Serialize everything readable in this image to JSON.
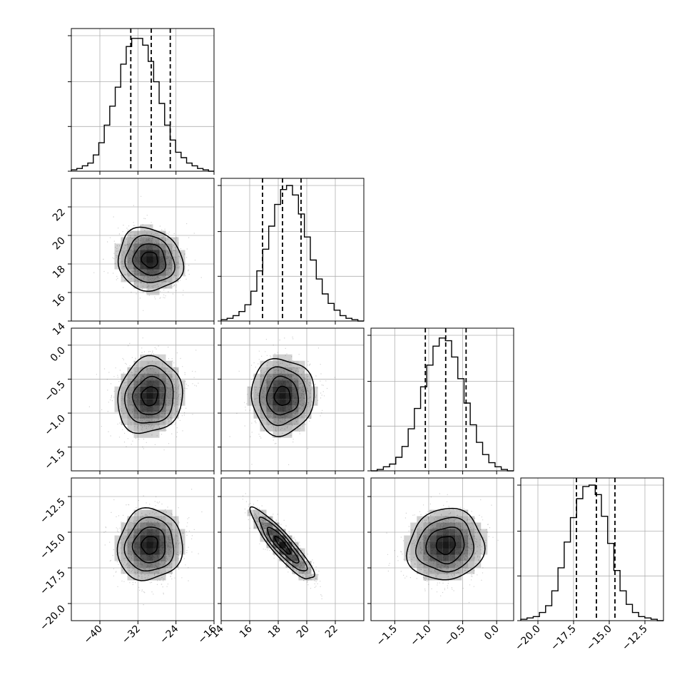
{
  "chart_data": {
    "type": "corner",
    "title": "",
    "colors": {
      "ink": "#000000",
      "grid": "#b0b0b0",
      "density": "#000000"
    },
    "grid": true,
    "variables": [
      {
        "index": 0,
        "range": [
          -46,
          -16
        ],
        "ticks": [
          -40,
          -32,
          -24,
          -16
        ],
        "tick_labels": [
          "−40",
          "−32",
          "−24",
          "−16"
        ],
        "quantiles": [
          -33.5,
          -29.2,
          -25.2
        ],
        "hist": [
          0.01,
          0.02,
          0.04,
          0.06,
          0.12,
          0.21,
          0.34,
          0.48,
          0.62,
          0.79,
          0.92,
          0.98,
          0.98,
          0.93,
          0.81,
          0.66,
          0.5,
          0.34,
          0.23,
          0.14,
          0.1,
          0.06,
          0.04,
          0.02,
          0.01,
          0.0
        ]
      },
      {
        "index": 1,
        "range": [
          14,
          24
        ],
        "ticks": [
          14,
          16,
          18,
          20,
          22
        ],
        "tick_labels": [
          "14",
          "16",
          "18",
          "20",
          "22"
        ],
        "quantiles": [
          16.9,
          18.3,
          19.6
        ],
        "hist": [
          0.01,
          0.02,
          0.04,
          0.07,
          0.12,
          0.22,
          0.37,
          0.53,
          0.7,
          0.86,
          0.97,
          1.0,
          0.93,
          0.79,
          0.62,
          0.45,
          0.31,
          0.2,
          0.13,
          0.08,
          0.04,
          0.02,
          0.01,
          0.0
        ]
      },
      {
        "index": 2,
        "range": [
          -1.85,
          0.25
        ],
        "ticks": [
          -1.5,
          -1.0,
          -0.5,
          0.0
        ],
        "tick_labels": [
          "−1.5",
          "−1.0",
          "−0.5",
          "0.0"
        ],
        "quantiles": [
          -1.05,
          -0.75,
          -0.45
        ],
        "hist": [
          0.0,
          0.01,
          0.03,
          0.05,
          0.1,
          0.18,
          0.31,
          0.46,
          0.62,
          0.78,
          0.92,
          0.98,
          0.96,
          0.84,
          0.68,
          0.5,
          0.34,
          0.21,
          0.12,
          0.06,
          0.03,
          0.01,
          0.0
        ]
      },
      {
        "index": 3,
        "range": [
          -21.2,
          -11.2
        ],
        "ticks": [
          -20.0,
          -17.5,
          -15.0,
          -12.5
        ],
        "tick_labels": [
          "−20.0",
          "−17.5",
          "−15.0",
          "−12.5"
        ],
        "quantiles": [
          -17.3,
          -15.9,
          -14.6
        ],
        "hist": [
          0.01,
          0.02,
          0.03,
          0.06,
          0.11,
          0.22,
          0.39,
          0.58,
          0.76,
          0.9,
          0.99,
          1.0,
          0.93,
          0.77,
          0.57,
          0.37,
          0.22,
          0.12,
          0.06,
          0.03,
          0.02,
          0.01,
          0.0
        ]
      }
    ],
    "hist_y_ticks": [
      0.0,
      0.33,
      0.66,
      1.0
    ],
    "pairs": [
      {
        "row": 1,
        "col": 0,
        "mean": [
          -29.5,
          18.3
        ],
        "sd": [
          3.4,
          1.1
        ],
        "rho": -0.1
      },
      {
        "row": 2,
        "col": 0,
        "mean": [
          -29.5,
          -0.75
        ],
        "sd": [
          3.4,
          0.28
        ],
        "rho": 0.1
      },
      {
        "row": 2,
        "col": 1,
        "mean": [
          18.3,
          -0.75
        ],
        "sd": [
          1.1,
          0.28
        ],
        "rho": 0.0
      },
      {
        "row": 3,
        "col": 0,
        "mean": [
          -29.5,
          -15.9
        ],
        "sd": [
          3.4,
          1.25
        ],
        "rho": 0.05
      },
      {
        "row": 3,
        "col": 1,
        "mean": [
          18.3,
          -15.9
        ],
        "sd": [
          1.1,
          1.25
        ],
        "rho": -0.9
      },
      {
        "row": 3,
        "col": 2,
        "mean": [
          -0.75,
          -15.9
        ],
        "sd": [
          0.28,
          1.25
        ],
        "rho": 0.08
      }
    ],
    "contour_levels_sigma": [
      0.5,
      1.0,
      1.5,
      2.0
    ]
  }
}
